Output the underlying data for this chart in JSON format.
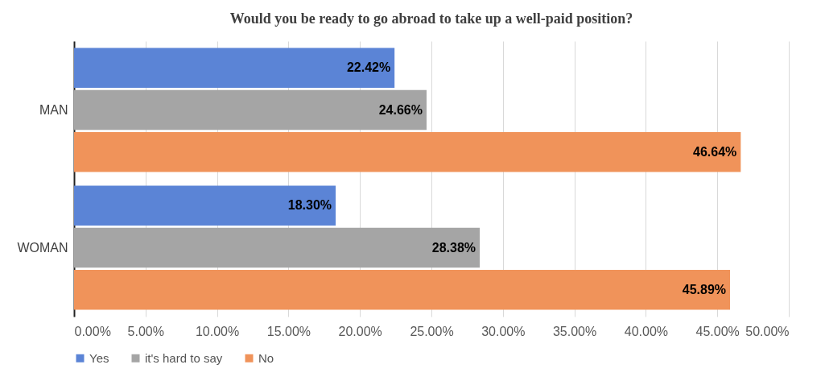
{
  "chart_data": {
    "type": "bar",
    "orientation": "horizontal",
    "title": "Would you be ready to go abroad to take up a well-paid position?",
    "categories": [
      "MAN",
      "WOMAN"
    ],
    "series": [
      {
        "name": "Yes",
        "color": "#5b84d6",
        "values": [
          22.42,
          18.3
        ],
        "value_labels": [
          "22.42%",
          "18.30%"
        ]
      },
      {
        "name": "it's hard to say",
        "color": "#a5a5a5",
        "values": [
          24.66,
          28.38
        ],
        "value_labels": [
          "24.66%",
          "28.38%"
        ]
      },
      {
        "name": "No",
        "color": "#f0935a",
        "values": [
          46.64,
          45.89
        ],
        "value_labels": [
          "46.64%",
          "45.89%"
        ]
      }
    ],
    "xlim": [
      0,
      50
    ],
    "xticks": [
      {
        "value": 0,
        "label": "0.00%"
      },
      {
        "value": 5,
        "label": "5.00%"
      },
      {
        "value": 10,
        "label": "10.00%"
      },
      {
        "value": 15,
        "label": "15.00%"
      },
      {
        "value": 20,
        "label": "20.00%"
      },
      {
        "value": 25,
        "label": "25.00%"
      },
      {
        "value": 30,
        "label": "30.00%"
      },
      {
        "value": 35,
        "label": "35.00%"
      },
      {
        "value": 40,
        "label": "40.00%"
      },
      {
        "value": 45,
        "label": "45.00%"
      },
      {
        "value": 50,
        "label": "50.00%"
      }
    ],
    "grid": "x",
    "legend": "bottom"
  }
}
